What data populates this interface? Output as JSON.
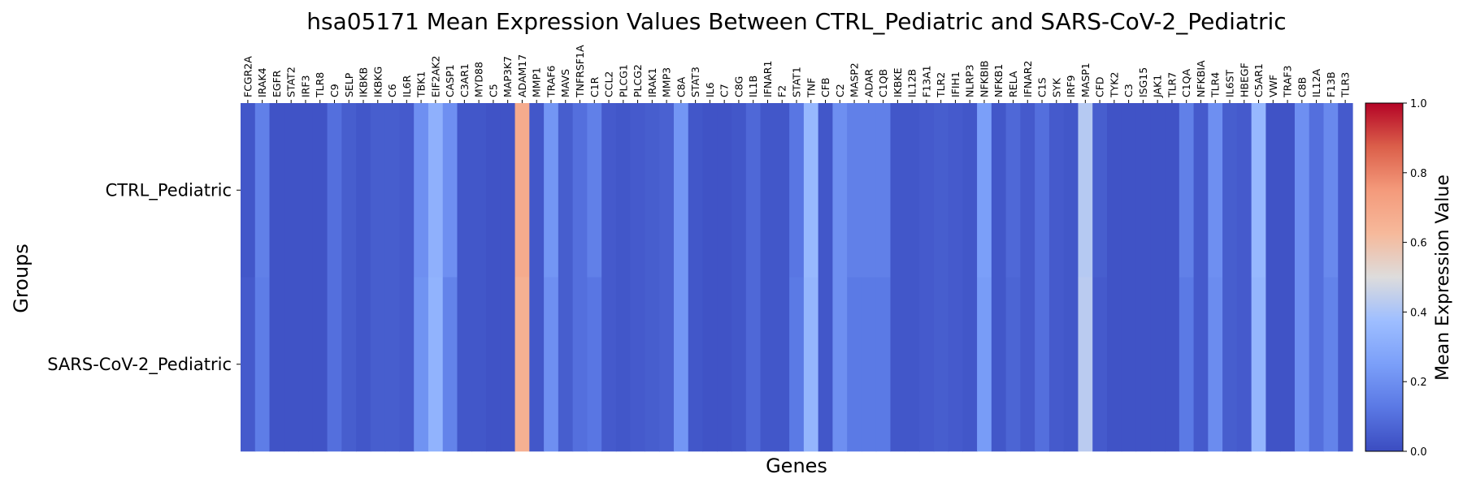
{
  "chart_data": {
    "type": "heatmap",
    "title": "hsa05171 Mean Expression Values Between CTRL_Pediatric and SARS-CoV-2_Pediatric",
    "xlabel": "Genes",
    "ylabel": "Groups",
    "colorbar_label": "Mean Expression Value",
    "colormap": "coolwarm",
    "vmin": 0.0,
    "vmax": 1.0,
    "colorbar_ticks": [
      "0.0",
      "0.2",
      "0.4",
      "0.6",
      "0.8",
      "1.0"
    ],
    "rows": [
      "CTRL_Pediatric",
      "SARS-CoV-2_Pediatric"
    ],
    "columns": [
      "FCGR2A",
      "IRAK4",
      "EGFR",
      "STAT2",
      "IRF3",
      "TLR8",
      "C9",
      "SELP",
      "IKBKB",
      "IKBKG",
      "C6",
      "IL6R",
      "TBK1",
      "EIF2AK2",
      "CASP1",
      "C3AR1",
      "MYD88",
      "C5",
      "MAP3K7",
      "ADAM17",
      "MMP1",
      "TRAF6",
      "MAVS",
      "TNFRSF1A",
      "C1R",
      "CCL2",
      "PLCG1",
      "PLCG2",
      "IRAK1",
      "MMP3",
      "C8A",
      "STAT3",
      "IL6",
      "C7",
      "C8G",
      "IL1B",
      "IFNAR1",
      "F2",
      "STAT1",
      "TNF",
      "CFB",
      "C2",
      "MASP2",
      "ADAR",
      "C1QB",
      "IKBKE",
      "IL12B",
      "F13A1",
      "TLR2",
      "IFIH1",
      "NLRP3",
      "NFKBIB",
      "NFKB1",
      "RELA",
      "IFNAR2",
      "C1S",
      "SYK",
      "IRF9",
      "MASP1",
      "CFD",
      "TYK2",
      "C3",
      "ISG15",
      "JAK1",
      "TLR7",
      "C1QA",
      "NFKBIA",
      "TLR4",
      "IL6ST",
      "HBEGF",
      "C5AR1",
      "VWF",
      "TRAF3",
      "C8B",
      "IL12A",
      "F13B",
      "TLR3"
    ],
    "values": [
      [
        0.03,
        0.15,
        0.02,
        0.02,
        0.02,
        0.02,
        0.1,
        0.05,
        0.03,
        0.05,
        0.05,
        0.04,
        0.2,
        0.32,
        0.2,
        0.03,
        0.03,
        0.02,
        0.02,
        0.68,
        0.03,
        0.22,
        0.05,
        0.1,
        0.15,
        0.04,
        0.03,
        0.04,
        0.05,
        0.06,
        0.22,
        0.03,
        0.02,
        0.02,
        0.03,
        0.08,
        0.03,
        0.03,
        0.12,
        0.35,
        0.03,
        0.2,
        0.15,
        0.15,
        0.15,
        0.03,
        0.03,
        0.04,
        0.05,
        0.04,
        0.03,
        0.25,
        0.03,
        0.08,
        0.04,
        0.1,
        0.04,
        0.03,
        0.42,
        0.05,
        0.02,
        0.02,
        0.02,
        0.02,
        0.02,
        0.15,
        0.04,
        0.2,
        0.05,
        0.04,
        0.35,
        0.02,
        0.02,
        0.2,
        0.1,
        0.18,
        0.04
      ],
      [
        0.04,
        0.14,
        0.02,
        0.02,
        0.02,
        0.02,
        0.1,
        0.05,
        0.03,
        0.05,
        0.05,
        0.04,
        0.21,
        0.33,
        0.16,
        0.03,
        0.03,
        0.02,
        0.02,
        0.66,
        0.03,
        0.2,
        0.05,
        0.1,
        0.12,
        0.04,
        0.03,
        0.04,
        0.05,
        0.06,
        0.22,
        0.03,
        0.02,
        0.02,
        0.03,
        0.08,
        0.03,
        0.03,
        0.13,
        0.34,
        0.03,
        0.2,
        0.13,
        0.13,
        0.13,
        0.03,
        0.03,
        0.04,
        0.05,
        0.04,
        0.03,
        0.24,
        0.03,
        0.07,
        0.04,
        0.1,
        0.04,
        0.03,
        0.43,
        0.04,
        0.02,
        0.02,
        0.02,
        0.02,
        0.02,
        0.13,
        0.04,
        0.19,
        0.05,
        0.04,
        0.34,
        0.02,
        0.02,
        0.2,
        0.1,
        0.16,
        0.04
      ]
    ]
  }
}
